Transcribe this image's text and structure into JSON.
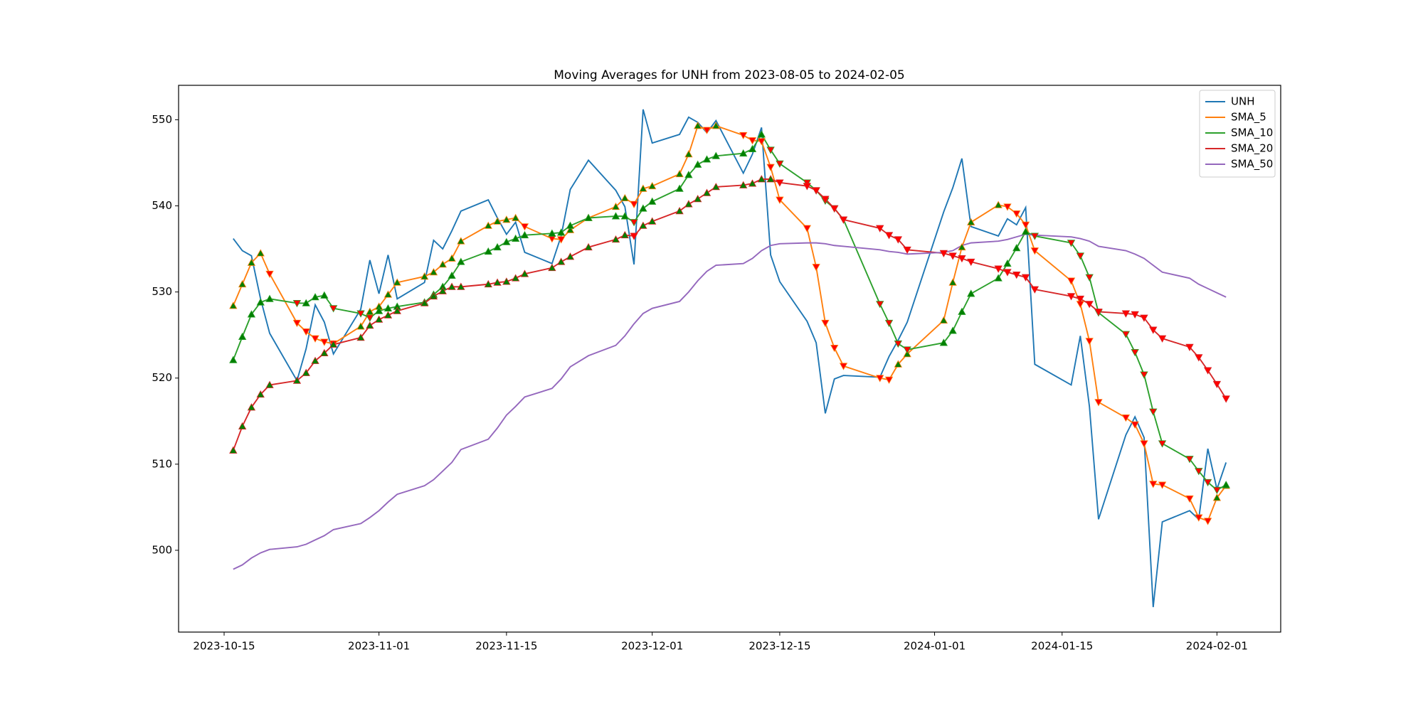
{
  "chart_data": {
    "type": "line",
    "title": "Moving Averages for UNH from 2023-08-05 to 2024-02-05",
    "x": [
      "2023-10-16",
      "2023-10-17",
      "2023-10-18",
      "2023-10-19",
      "2023-10-20",
      "2023-10-23",
      "2023-10-24",
      "2023-10-25",
      "2023-10-26",
      "2023-10-27",
      "2023-10-30",
      "2023-10-31",
      "2023-11-01",
      "2023-11-02",
      "2023-11-03",
      "2023-11-06",
      "2023-11-07",
      "2023-11-08",
      "2023-11-09",
      "2023-11-10",
      "2023-11-13",
      "2023-11-14",
      "2023-11-15",
      "2023-11-16",
      "2023-11-17",
      "2023-11-20",
      "2023-11-21",
      "2023-11-22",
      "2023-11-24",
      "2023-11-27",
      "2023-11-28",
      "2023-11-29",
      "2023-11-30",
      "2023-12-01",
      "2023-12-04",
      "2023-12-05",
      "2023-12-06",
      "2023-12-07",
      "2023-12-08",
      "2023-12-11",
      "2023-12-12",
      "2023-12-13",
      "2023-12-14",
      "2023-12-15",
      "2023-12-18",
      "2023-12-19",
      "2023-12-20",
      "2023-12-21",
      "2023-12-22",
      "2023-12-26",
      "2023-12-27",
      "2023-12-28",
      "2023-12-29",
      "2024-01-02",
      "2024-01-03",
      "2024-01-04",
      "2024-01-05",
      "2024-01-08",
      "2024-01-09",
      "2024-01-10",
      "2024-01-11",
      "2024-01-12",
      "2024-01-16",
      "2024-01-17",
      "2024-01-18",
      "2024-01-19",
      "2024-01-22",
      "2024-01-23",
      "2024-01-24",
      "2024-01-25",
      "2024-01-26",
      "2024-01-29",
      "2024-01-30",
      "2024-01-31",
      "2024-02-01",
      "2024-02-02"
    ],
    "series": [
      {
        "name": "UNH",
        "color": "#1f77b4",
        "markers": false,
        "values": [
          536.2,
          534.8,
          534.2,
          529.2,
          525.2,
          519.7,
          523.4,
          528.5,
          526.5,
          522.8,
          528.0,
          533.7,
          529.8,
          534.3,
          529.2,
          531.1,
          536.0,
          535.0,
          537.1,
          539.4,
          540.7,
          538.6,
          536.7,
          538.1,
          534.6,
          533.3,
          536.5,
          541.9,
          545.3,
          541.8,
          539.9,
          533.2,
          551.2,
          547.3,
          548.3,
          550.3,
          549.7,
          548.5,
          549.9,
          543.8,
          546.0,
          549.1,
          534.3,
          531.2,
          526.6,
          524.1,
          515.9,
          519.9,
          520.3,
          520.1,
          522.5,
          524.4,
          526.5,
          539.3,
          542.1,
          545.5,
          537.6,
          536.5,
          538.5,
          537.8,
          539.8,
          521.6,
          519.2,
          524.9,
          516.7,
          503.6,
          513.4,
          515.5,
          513.1,
          493.4,
          503.3,
          504.6,
          503.6,
          511.8,
          507.1,
          510.2
        ]
      },
      {
        "name": "SMA_5",
        "color": "#ff7f0e",
        "markers": true,
        "values": [
          528.4,
          530.9,
          533.4,
          534.5,
          532.1,
          526.4,
          525.4,
          524.6,
          524.2,
          524.0,
          526.0,
          527.7,
          528.3,
          529.7,
          531.1,
          531.8,
          532.3,
          533.2,
          533.9,
          535.9,
          537.7,
          538.2,
          538.4,
          538.6,
          537.6,
          536.2,
          536.1,
          537.2,
          538.6,
          539.9,
          540.9,
          540.2,
          542.0,
          542.3,
          543.7,
          546.0,
          549.3,
          548.8,
          549.3,
          548.2,
          547.6,
          547.5,
          544.5,
          540.7,
          537.4,
          532.9,
          526.4,
          523.5,
          521.4,
          520.0,
          519.8,
          521.6,
          522.8,
          526.7,
          531.1,
          535.2,
          538.1,
          540.1,
          539.9,
          539.1,
          537.8,
          534.8,
          531.3,
          528.6,
          524.3,
          517.2,
          515.4,
          514.6,
          512.4,
          507.7,
          507.6,
          506.0,
          503.8,
          503.4,
          506.1,
          507.5
        ]
      },
      {
        "name": "SMA_10",
        "color": "#2ca02c",
        "markers": true,
        "values": [
          522.1,
          524.8,
          527.4,
          528.8,
          529.2,
          528.7,
          528.7,
          529.4,
          529.6,
          528.1,
          527.5,
          527.0,
          527.8,
          528.1,
          528.3,
          528.8,
          529.7,
          530.6,
          531.9,
          533.5,
          534.7,
          535.2,
          535.8,
          536.2,
          536.6,
          536.8,
          536.9,
          537.7,
          538.6,
          538.8,
          538.8,
          538.1,
          539.7,
          540.5,
          542.0,
          543.6,
          544.8,
          545.4,
          545.8,
          546.1,
          546.6,
          548.3,
          546.5,
          544.9,
          542.7,
          541.8,
          540.6,
          539.7,
          538.4,
          528.6,
          526.4,
          524.0,
          523.3,
          524.1,
          525.5,
          527.7,
          529.8,
          531.6,
          533.3,
          535.1,
          537.0,
          536.5,
          535.7,
          534.2,
          531.7,
          527.6,
          525.1,
          523.0,
          520.4,
          516.1,
          512.4,
          510.6,
          509.2,
          507.9,
          507.0,
          507.6
        ]
      },
      {
        "name": "SMA_20",
        "color": "#d62728",
        "markers": true,
        "values": [
          511.6,
          514.4,
          516.6,
          518.1,
          519.2,
          519.7,
          520.6,
          522.0,
          522.9,
          523.9,
          524.7,
          526.1,
          526.8,
          527.3,
          527.8,
          528.7,
          529.5,
          530.1,
          530.6,
          530.6,
          530.9,
          531.1,
          531.2,
          531.6,
          532.1,
          532.8,
          533.5,
          534.1,
          535.2,
          536.1,
          536.6,
          536.5,
          537.7,
          538.2,
          539.4,
          540.2,
          540.8,
          541.5,
          542.2,
          542.4,
          542.6,
          543.1,
          543.1,
          542.7,
          542.3,
          541.8,
          540.8,
          539.7,
          538.4,
          537.4,
          536.6,
          536.1,
          534.9,
          534.5,
          534.2,
          533.9,
          533.5,
          532.7,
          532.3,
          532.0,
          531.7,
          530.3,
          529.5,
          529.2,
          528.6,
          527.7,
          527.5,
          527.4,
          527.0,
          525.6,
          524.6,
          523.6,
          522.4,
          520.9,
          519.3,
          517.6
        ]
      },
      {
        "name": "SMA_50",
        "color": "#9467bd",
        "markers": false,
        "values": [
          497.8,
          498.3,
          499.1,
          499.7,
          500.1,
          500.4,
          500.7,
          501.2,
          501.7,
          502.4,
          503.1,
          503.8,
          504.6,
          505.6,
          506.5,
          507.5,
          508.2,
          509.2,
          510.2,
          511.7,
          512.9,
          514.2,
          515.7,
          516.7,
          517.8,
          518.8,
          519.9,
          521.3,
          522.6,
          523.8,
          524.9,
          526.3,
          527.5,
          528.1,
          528.9,
          530.0,
          531.3,
          532.4,
          533.1,
          533.3,
          533.9,
          534.8,
          535.4,
          535.6,
          535.7,
          535.7,
          535.6,
          535.4,
          535.3,
          534.9,
          534.7,
          534.6,
          534.4,
          534.6,
          534.8,
          535.4,
          535.7,
          535.9,
          536.1,
          536.4,
          536.7,
          536.6,
          536.4,
          536.2,
          535.9,
          535.3,
          534.8,
          534.4,
          533.9,
          533.1,
          532.3,
          531.6,
          530.9,
          530.4,
          529.9,
          529.4
        ]
      }
    ],
    "marker_up_color": "#008000",
    "marker_down_color": "#ff0000",
    "xlim": [
      "2023-10-10",
      "2024-02-08"
    ],
    "xticks": [
      "2023-10-15",
      "2023-11-01",
      "2023-11-15",
      "2023-12-01",
      "2023-12-15",
      "2024-01-01",
      "2024-01-15",
      "2024-02-01"
    ],
    "ylim": [
      490.5,
      554
    ],
    "yticks": [
      500,
      510,
      520,
      530,
      540,
      550
    ],
    "grid": false,
    "legend": "upper right"
  }
}
